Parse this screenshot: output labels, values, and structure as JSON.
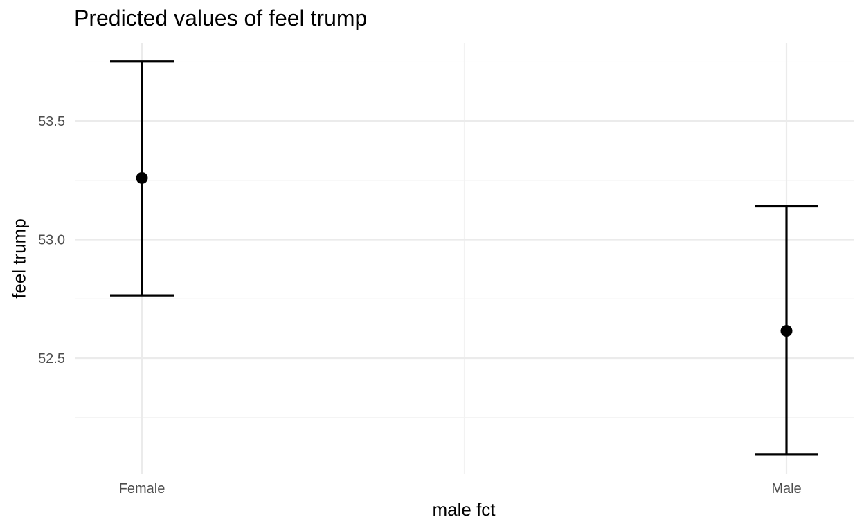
{
  "chart_data": {
    "type": "errorbar",
    "title": "Predicted values of feel trump",
    "xlabel": "male fct",
    "ylabel": "feel trump",
    "categories": [
      "Female",
      "Male"
    ],
    "estimates": [
      53.26,
      52.615
    ],
    "ci_lower": [
      52.765,
      52.095
    ],
    "ci_upper": [
      53.752,
      53.14
    ],
    "y_ticks": [
      52.5,
      53.0,
      53.5
    ],
    "y_tick_labels": [
      "52.5",
      "53.0",
      "53.5"
    ],
    "ylim": [
      52.01,
      53.83
    ],
    "grid": true,
    "legend": "none",
    "colors": {
      "mark": "#000000",
      "grid_major": "#ebebeb",
      "grid_minor": "#f2f2f2",
      "tick_text": "#4d4d4d"
    }
  }
}
